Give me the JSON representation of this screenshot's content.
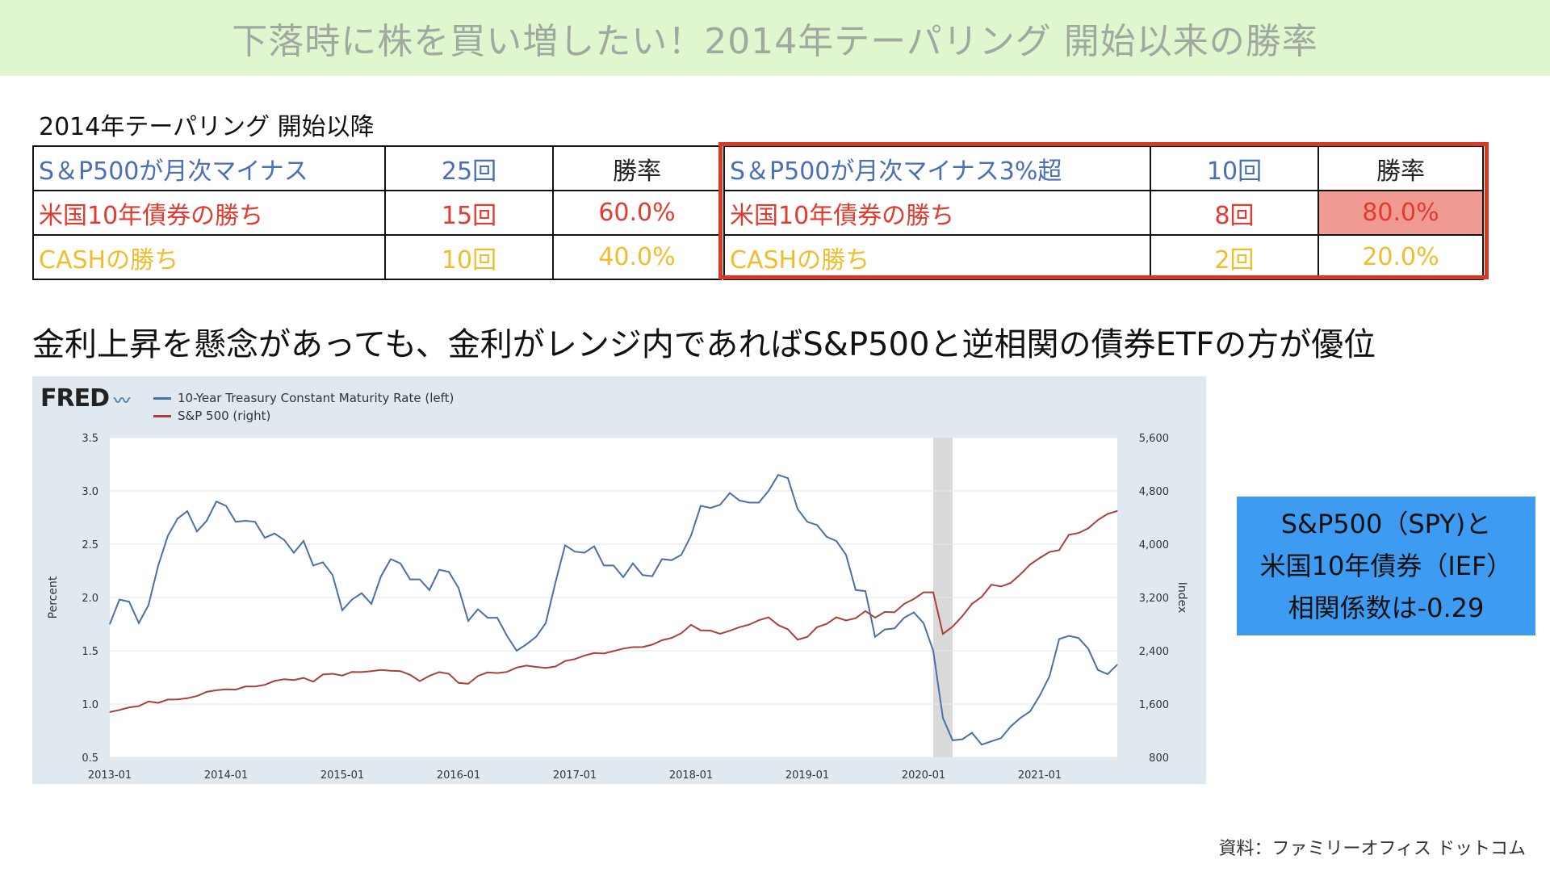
{
  "banner": {
    "title": "下落時に株を買い増したい！2014年テーパリング 開始以来の勝率"
  },
  "table_caption": "2014年テーパリング 開始以降",
  "left_table": {
    "rows": [
      {
        "label": "S＆P500が月次マイナス",
        "count": "25回",
        "rate": "勝率",
        "color": "#4a6fb5"
      },
      {
        "label": "米国10年債券の勝ち",
        "count": "15回",
        "rate": "60.0%",
        "color": "#e53a2e"
      },
      {
        "label": "CASHの勝ち",
        "count": "10回",
        "rate": "40.0%",
        "color": "#f1bd2c"
      }
    ]
  },
  "right_table": {
    "rows": [
      {
        "label": "S＆P500が月次マイナス3%超",
        "count": "10回",
        "rate": "勝率",
        "color": "#4a6fb5"
      },
      {
        "label": "米国10年債券の勝ち",
        "count": "8回",
        "rate": "80.0%",
        "color": "#e53a2e"
      },
      {
        "label": "CASHの勝ち",
        "count": "2回",
        "rate": "20.0%",
        "color": "#f1bd2c"
      }
    ]
  },
  "statement": "金利上昇を懸念があっても、金利がレンジ内であればS&P500と逆相関の債券ETFの方が優位",
  "fred_logo": "FRED",
  "corr_box": {
    "line1": "S&P500（SPY)と",
    "line2": "米国10年債券（IEF）",
    "line3": "相関係数は-0.29"
  },
  "source": "資料：ファミリーオフィス ドットコム",
  "chart_data": {
    "type": "line",
    "title": "",
    "x_ticks": [
      "2013-01",
      "2014-01",
      "2015-01",
      "2016-01",
      "2017-01",
      "2018-01",
      "2019-01",
      "2020-01",
      "2021-01"
    ],
    "x_range": [
      "2013-01",
      "2021-09"
    ],
    "left_axis": {
      "label": "Percent",
      "ticks": [
        "0.5",
        "1.0",
        "1.5",
        "2.0",
        "2.5",
        "3.0",
        "3.5"
      ],
      "range": [
        0.5,
        3.5
      ]
    },
    "right_axis": {
      "label": "Index",
      "ticks": [
        "800",
        "1,600",
        "2,400",
        "3,200",
        "4,000",
        "4,800",
        "5,600"
      ],
      "range": [
        800,
        5600
      ]
    },
    "grid": "vertical-off",
    "recession_shading": {
      "start": "2020-02",
      "end": "2020-04"
    },
    "series": [
      {
        "name": "10-Year Treasury Constant Maturity Rate (left)",
        "color": "#4b6fa8",
        "axis": "left",
        "points": [
          [
            "2013-01",
            1.75
          ],
          [
            "2013-02",
            1.98
          ],
          [
            "2013-03",
            1.96
          ],
          [
            "2013-04",
            1.76
          ],
          [
            "2013-05",
            1.93
          ],
          [
            "2013-06",
            2.3
          ],
          [
            "2013-07",
            2.58
          ],
          [
            "2013-08",
            2.74
          ],
          [
            "2013-09",
            2.81
          ],
          [
            "2013-10",
            2.62
          ],
          [
            "2013-11",
            2.72
          ],
          [
            "2013-12",
            2.9
          ],
          [
            "2014-01",
            2.86
          ],
          [
            "2014-02",
            2.71
          ],
          [
            "2014-03",
            2.72
          ],
          [
            "2014-04",
            2.71
          ],
          [
            "2014-05",
            2.56
          ],
          [
            "2014-06",
            2.6
          ],
          [
            "2014-07",
            2.54
          ],
          [
            "2014-08",
            2.42
          ],
          [
            "2014-09",
            2.53
          ],
          [
            "2014-10",
            2.3
          ],
          [
            "2014-11",
            2.33
          ],
          [
            "2014-12",
            2.21
          ],
          [
            "2015-01",
            1.88
          ],
          [
            "2015-02",
            1.98
          ],
          [
            "2015-03",
            2.04
          ],
          [
            "2015-04",
            1.94
          ],
          [
            "2015-05",
            2.2
          ],
          [
            "2015-06",
            2.36
          ],
          [
            "2015-07",
            2.32
          ],
          [
            "2015-08",
            2.17
          ],
          [
            "2015-09",
            2.17
          ],
          [
            "2015-10",
            2.07
          ],
          [
            "2015-11",
            2.26
          ],
          [
            "2015-12",
            2.24
          ],
          [
            "2016-01",
            2.09
          ],
          [
            "2016-02",
            1.78
          ],
          [
            "2016-03",
            1.89
          ],
          [
            "2016-04",
            1.81
          ],
          [
            "2016-05",
            1.81
          ],
          [
            "2016-06",
            1.64
          ],
          [
            "2016-07",
            1.5
          ],
          [
            "2016-08",
            1.56
          ],
          [
            "2016-09",
            1.63
          ],
          [
            "2016-10",
            1.76
          ],
          [
            "2016-11",
            2.14
          ],
          [
            "2016-12",
            2.49
          ],
          [
            "2017-01",
            2.43
          ],
          [
            "2017-02",
            2.42
          ],
          [
            "2017-03",
            2.48
          ],
          [
            "2017-04",
            2.3
          ],
          [
            "2017-05",
            2.3
          ],
          [
            "2017-06",
            2.19
          ],
          [
            "2017-07",
            2.32
          ],
          [
            "2017-08",
            2.21
          ],
          [
            "2017-09",
            2.2
          ],
          [
            "2017-10",
            2.36
          ],
          [
            "2017-11",
            2.35
          ],
          [
            "2017-12",
            2.4
          ],
          [
            "2018-01",
            2.58
          ],
          [
            "2018-02",
            2.86
          ],
          [
            "2018-03",
            2.84
          ],
          [
            "2018-04",
            2.87
          ],
          [
            "2018-05",
            2.98
          ],
          [
            "2018-06",
            2.91
          ],
          [
            "2018-07",
            2.89
          ],
          [
            "2018-08",
            2.89
          ],
          [
            "2018-09",
            3.0
          ],
          [
            "2018-10",
            3.15
          ],
          [
            "2018-11",
            3.12
          ],
          [
            "2018-12",
            2.83
          ],
          [
            "2019-01",
            2.71
          ],
          [
            "2019-02",
            2.68
          ],
          [
            "2019-03",
            2.57
          ],
          [
            "2019-04",
            2.53
          ],
          [
            "2019-05",
            2.4
          ],
          [
            "2019-06",
            2.07
          ],
          [
            "2019-07",
            2.06
          ],
          [
            "2019-08",
            1.63
          ],
          [
            "2019-09",
            1.7
          ],
          [
            "2019-10",
            1.71
          ],
          [
            "2019-11",
            1.81
          ],
          [
            "2019-12",
            1.86
          ],
          [
            "2020-01",
            1.76
          ],
          [
            "2020-02",
            1.5
          ],
          [
            "2020-03",
            0.87
          ],
          [
            "2020-04",
            0.66
          ],
          [
            "2020-05",
            0.67
          ],
          [
            "2020-06",
            0.73
          ],
          [
            "2020-07",
            0.62
          ],
          [
            "2020-08",
            0.65
          ],
          [
            "2020-09",
            0.68
          ],
          [
            "2020-10",
            0.79
          ],
          [
            "2020-11",
            0.87
          ],
          [
            "2020-12",
            0.93
          ],
          [
            "2021-01",
            1.08
          ],
          [
            "2021-02",
            1.26
          ],
          [
            "2021-03",
            1.61
          ],
          [
            "2021-04",
            1.64
          ],
          [
            "2021-05",
            1.62
          ],
          [
            "2021-06",
            1.52
          ],
          [
            "2021-07",
            1.32
          ],
          [
            "2021-08",
            1.28
          ],
          [
            "2021-09",
            1.37
          ]
        ]
      },
      {
        "name": "S&P 500 (right)",
        "color": "#a8413b",
        "axis": "right",
        "points": [
          [
            "2013-01",
            1480
          ],
          [
            "2013-02",
            1512
          ],
          [
            "2013-03",
            1550
          ],
          [
            "2013-04",
            1570
          ],
          [
            "2013-05",
            1639
          ],
          [
            "2013-06",
            1618
          ],
          [
            "2013-07",
            1668
          ],
          [
            "2013-08",
            1670
          ],
          [
            "2013-09",
            1687
          ],
          [
            "2013-10",
            1720
          ],
          [
            "2013-11",
            1783
          ],
          [
            "2013-12",
            1807
          ],
          [
            "2014-01",
            1822
          ],
          [
            "2014-02",
            1817
          ],
          [
            "2014-03",
            1863
          ],
          [
            "2014-04",
            1864
          ],
          [
            "2014-05",
            1889
          ],
          [
            "2014-06",
            1947
          ],
          [
            "2014-07",
            1973
          ],
          [
            "2014-08",
            1961
          ],
          [
            "2014-09",
            1993
          ],
          [
            "2014-10",
            1937
          ],
          [
            "2014-11",
            2044
          ],
          [
            "2014-12",
            2054
          ],
          [
            "2015-01",
            2028
          ],
          [
            "2015-02",
            2083
          ],
          [
            "2015-03",
            2080
          ],
          [
            "2015-04",
            2094
          ],
          [
            "2015-05",
            2111
          ],
          [
            "2015-06",
            2099
          ],
          [
            "2015-07",
            2094
          ],
          [
            "2015-08",
            2039
          ],
          [
            "2015-09",
            1944
          ],
          [
            "2015-10",
            2024
          ],
          [
            "2015-11",
            2080
          ],
          [
            "2015-12",
            2054
          ],
          [
            "2016-01",
            1918
          ],
          [
            "2016-02",
            1904
          ],
          [
            "2016-03",
            2022
          ],
          [
            "2016-04",
            2075
          ],
          [
            "2016-05",
            2065
          ],
          [
            "2016-06",
            2083
          ],
          [
            "2016-07",
            2148
          ],
          [
            "2016-08",
            2177
          ],
          [
            "2016-09",
            2157
          ],
          [
            "2016-10",
            2143
          ],
          [
            "2016-11",
            2164
          ],
          [
            "2016-12",
            2246
          ],
          [
            "2017-01",
            2275
          ],
          [
            "2017-02",
            2329
          ],
          [
            "2017-03",
            2366
          ],
          [
            "2017-04",
            2359
          ],
          [
            "2017-05",
            2395
          ],
          [
            "2017-06",
            2433
          ],
          [
            "2017-07",
            2454
          ],
          [
            "2017-08",
            2456
          ],
          [
            "2017-09",
            2492
          ],
          [
            "2017-10",
            2557
          ],
          [
            "2017-11",
            2593
          ],
          [
            "2017-12",
            2664
          ],
          [
            "2018-01",
            2789
          ],
          [
            "2018-02",
            2705
          ],
          [
            "2018-03",
            2703
          ],
          [
            "2018-04",
            2654
          ],
          [
            "2018-05",
            2701
          ],
          [
            "2018-06",
            2754
          ],
          [
            "2018-07",
            2793
          ],
          [
            "2018-08",
            2858
          ],
          [
            "2018-09",
            2902
          ],
          [
            "2018-10",
            2785
          ],
          [
            "2018-11",
            2723
          ],
          [
            "2018-12",
            2567
          ],
          [
            "2019-01",
            2607
          ],
          [
            "2019-02",
            2754
          ],
          [
            "2019-03",
            2804
          ],
          [
            "2019-04",
            2903
          ],
          [
            "2019-05",
            2854
          ],
          [
            "2019-06",
            2890
          ],
          [
            "2019-07",
            2996
          ],
          [
            "2019-08",
            2897
          ],
          [
            "2019-09",
            2983
          ],
          [
            "2019-10",
            2977
          ],
          [
            "2019-11",
            3104
          ],
          [
            "2019-12",
            3177
          ],
          [
            "2020-01",
            3278
          ],
          [
            "2020-02",
            3277
          ],
          [
            "2020-03",
            2652
          ],
          [
            "2020-04",
            2762
          ],
          [
            "2020-05",
            2919
          ],
          [
            "2020-06",
            3104
          ],
          [
            "2020-07",
            3208
          ],
          [
            "2020-08",
            3391
          ],
          [
            "2020-09",
            3365
          ],
          [
            "2020-10",
            3418
          ],
          [
            "2020-11",
            3548
          ],
          [
            "2020-12",
            3695
          ],
          [
            "2021-01",
            3794
          ],
          [
            "2021-02",
            3883
          ],
          [
            "2021-03",
            3910
          ],
          [
            "2021-04",
            4141
          ],
          [
            "2021-05",
            4168
          ],
          [
            "2021-06",
            4238
          ],
          [
            "2021-07",
            4364
          ],
          [
            "2021-08",
            4454
          ],
          [
            "2021-09",
            4500
          ]
        ]
      }
    ]
  }
}
